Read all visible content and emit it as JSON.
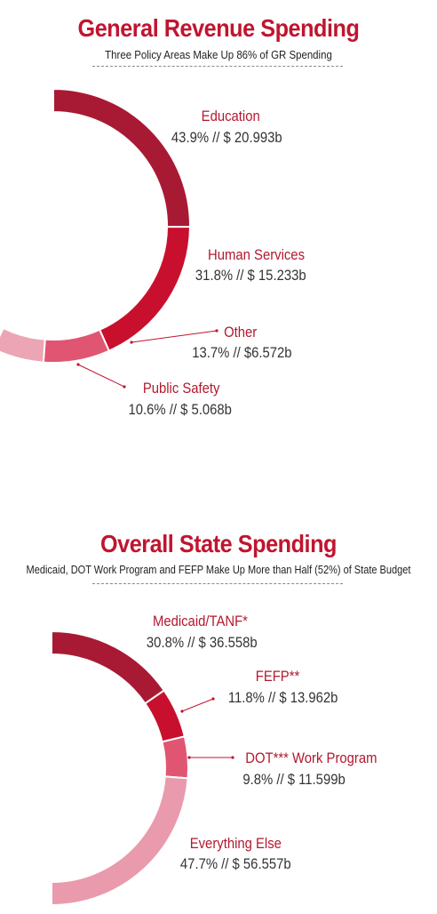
{
  "charts": [
    {
      "title": "General Revenue Spending",
      "subtitle": "Three Policy Areas Make Up 86% of GR Spending"
    },
    {
      "title": "Overall State Spending",
      "subtitle": "Medicaid, DOT Work Program and FEFP Make Up More than Half (52%) of State Budget"
    }
  ],
  "chart_data": [
    {
      "type": "pie",
      "title": "General Revenue Spending",
      "subtitle": "Three Policy Areas Make Up 86% of GR Spending",
      "categories": [
        "Education",
        "Human Services",
        "Other",
        "Public Safety"
      ],
      "percent": [
        43.9,
        31.8,
        13.7,
        10.6
      ],
      "values_billions": [
        20.993,
        15.233,
        6.572,
        5.068
      ],
      "labels": [
        "43.9% // $ 20.993b",
        "31.8% // $ 15.233b",
        "13.7% //  $6.572b",
        "10.6% // $ 5.068b"
      ],
      "colors": [
        "#a81a33",
        "#c8102e",
        "#e05672",
        "#eba5b4"
      ]
    },
    {
      "type": "pie",
      "title": "Overall State Spending",
      "subtitle": "Medicaid, DOT Work Program and FEFP Make Up More than Half (52%) of State Budget",
      "categories": [
        "Medicaid/TANF*",
        "FEFP**",
        "DOT*** Work Program",
        "Everything Else"
      ],
      "percent": [
        30.8,
        11.8,
        9.8,
        47.7
      ],
      "values_billions": [
        36.558,
        13.962,
        11.599,
        56.557
      ],
      "labels": [
        "30.8% // $ 36.558b",
        "11.8% // $ 13.962b",
        "9.8% // $ 11.599b",
        "47.7% // $ 56.557b"
      ],
      "colors": [
        "#a81a33",
        "#c8102e",
        "#e05672",
        "#e99aac"
      ]
    }
  ]
}
